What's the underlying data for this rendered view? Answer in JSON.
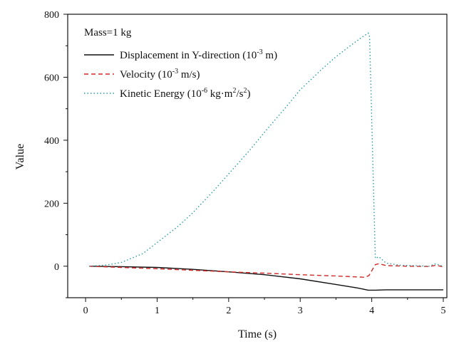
{
  "chart_data": {
    "type": "line",
    "title": "",
    "xlabel": "Time (s)",
    "ylabel": "Value",
    "xlim": [
      -0.25,
      5.05
    ],
    "ylim": [
      -100,
      800
    ],
    "x_ticks": [
      0,
      1,
      2,
      3,
      4,
      5
    ],
    "x_tick_labels": [
      "0",
      "1",
      "2",
      "3",
      "4",
      "5"
    ],
    "y_ticks": [
      0,
      200,
      400,
      600,
      800
    ],
    "y_tick_labels": [
      "0",
      "200",
      "400",
      "600",
      "800"
    ],
    "grid": false,
    "legend": {
      "placement": "top-left",
      "note": "Mass=1 kg",
      "entries": [
        {
          "base": "Displacement in Y-direction (10",
          "sup": "-3",
          "tail": " m)"
        },
        {
          "base": "Velocity  (10",
          "sup": "-3",
          "tail": " m/s)"
        },
        {
          "base": "Kinetic Energy (10",
          "sup": "-6",
          "tail": " kg·m",
          "sup2": "2",
          "tail2": "/s",
          "sup3": "2",
          "tail3": ")"
        }
      ]
    },
    "series": [
      {
        "name": "Displacement in Y-direction (10^-3 m)",
        "color": "#111111",
        "style": "solid",
        "x": [
          0.05,
          0.5,
          1.0,
          1.5,
          2.0,
          2.5,
          3.0,
          3.5,
          3.8,
          3.95,
          4.05,
          4.2,
          4.5,
          5.0
        ],
        "y": [
          0,
          -1.5,
          -4,
          -10,
          -18,
          -27,
          -40,
          -58,
          -69,
          -76,
          -76,
          -75,
          -75,
          -75
        ]
      },
      {
        "name": "Velocity (10^-3 m/s)",
        "color": "#d62728",
        "style": "dashed",
        "x": [
          0.05,
          0.5,
          1.0,
          1.5,
          2.0,
          2.5,
          3.0,
          3.5,
          3.9,
          3.96,
          4.05,
          4.1,
          4.2,
          4.5,
          4.8,
          4.9,
          5.0
        ],
        "y": [
          0,
          -4,
          -8,
          -13,
          -18,
          -22,
          -27,
          -31,
          -35,
          -30,
          5,
          8,
          2,
          0,
          -1,
          3,
          -2
        ]
      },
      {
        "name": "Kinetic Energy (10^-6 kg·m^2/s^2)",
        "color": "#2a9d9f",
        "style": "dotted",
        "x": [
          0.05,
          0.3,
          0.5,
          0.8,
          1.0,
          1.3,
          1.5,
          1.8,
          2.0,
          2.3,
          2.5,
          2.8,
          3.0,
          3.3,
          3.5,
          3.7,
          3.85,
          3.95,
          3.97,
          4.05,
          4.1,
          4.2,
          4.4,
          4.6,
          4.8,
          4.9,
          4.95,
          5.0
        ],
        "y": [
          0,
          4,
          12,
          40,
          75,
          128,
          170,
          242,
          293,
          370,
          425,
          505,
          560,
          625,
          665,
          700,
          725,
          740,
          728,
          25,
          30,
          10,
          3,
          2,
          0,
          8,
          3,
          0
        ]
      }
    ]
  }
}
